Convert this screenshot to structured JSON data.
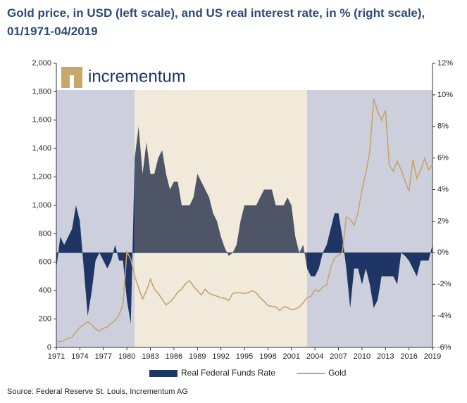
{
  "chart_data": {
    "type": "area-line",
    "title": "Gold price, in USD (left scale), and US real interest rate, in % (right scale), 01/1971-04/2019",
    "logo_text": "incrementum",
    "source": "Source: Federal Reserve St. Louis, Incrementum AG",
    "xlim": [
      1971,
      2019
    ],
    "xticks": [
      1971,
      1974,
      1977,
      1980,
      1983,
      1986,
      1989,
      1992,
      1995,
      1998,
      2001,
      2004,
      2007,
      2010,
      2013,
      2016,
      2019
    ],
    "ylim": [
      0,
      2000
    ],
    "yticks": [
      0,
      200,
      400,
      600,
      800,
      {
        "value": 1000,
        "label": "1,000"
      },
      {
        "value": 1200,
        "label": "1,200"
      },
      {
        "value": 1400,
        "label": "1,400"
      },
      {
        "value": 1600,
        "label": "1,600"
      },
      {
        "value": 1800,
        "label": "1,800"
      },
      {
        "value": 2000,
        "label": "2,000"
      }
    ],
    "y2lim": [
      -6,
      12
    ],
    "y2ticks": [
      {
        "value": -6,
        "label": "-6%"
      },
      {
        "value": -4,
        "label": "-4%"
      },
      {
        "value": -2,
        "label": "-2%"
      },
      {
        "value": 0,
        "label": "0%"
      },
      {
        "value": 2,
        "label": "2%"
      },
      {
        "value": 4,
        "label": "4%"
      },
      {
        "value": 6,
        "label": "6%"
      },
      {
        "value": 8,
        "label": "8%"
      },
      {
        "value": 10,
        "label": "10%"
      },
      {
        "value": 12,
        "label": "12%"
      }
    ],
    "bands": [
      {
        "x": [
          1971,
          1981
        ],
        "color": "#cdd0dc",
        "area_color": "#1f3566"
      },
      {
        "x": [
          1981,
          2003
        ],
        "color": "#f1eadb",
        "area_color": "#4e5566"
      },
      {
        "x": [
          2003,
          2019
        ],
        "color": "#cdd0dc",
        "area_color": "#1f3566"
      }
    ],
    "x": [
      1971,
      1971.5,
      1972,
      1972.5,
      1973,
      1973.5,
      1974,
      1974.5,
      1975,
      1975.5,
      1976,
      1976.5,
      1977,
      1977.5,
      1978,
      1978.5,
      1979,
      1979.5,
      1980,
      1980.5,
      1981,
      1981.5,
      1982,
      1982.5,
      1983,
      1983.5,
      1984,
      1984.5,
      1985,
      1985.5,
      1986,
      1986.5,
      1987,
      1987.5,
      1988,
      1988.5,
      1989,
      1989.5,
      1990,
      1990.5,
      1991,
      1991.5,
      1992,
      1992.5,
      1993,
      1993.5,
      1994,
      1994.5,
      1995,
      1995.5,
      1996,
      1996.5,
      1997,
      1997.5,
      1998,
      1998.5,
      1999,
      1999.5,
      2000,
      2000.5,
      2001,
      2001.5,
      2002,
      2002.5,
      2003,
      2003.5,
      2004,
      2004.5,
      2005,
      2005.5,
      2006,
      2006.5,
      2007,
      2007.5,
      2008,
      2008.5,
      2009,
      2009.5,
      2010,
      2010.5,
      2011,
      2011.5,
      2012,
      2012.5,
      2013,
      2013.5,
      2014,
      2014.5,
      2015,
      2015.5,
      2016,
      2016.5,
      2017,
      2017.5,
      2018,
      2018.5,
      2019
    ],
    "series": [
      {
        "name": "Real Federal Funds Rate",
        "color": "#1f3566",
        "axis": "y2",
        "values": [
          -1,
          1,
          0.5,
          1,
          1.5,
          3,
          2,
          -1,
          -4,
          -2.5,
          -0.5,
          0,
          -0.5,
          -1,
          -0.5,
          0.5,
          -0.5,
          -0.5,
          -3,
          -4.5,
          6,
          8,
          5,
          7,
          5,
          5,
          6,
          6.5,
          5,
          4,
          4.5,
          4.5,
          3,
          3,
          3,
          3.5,
          5,
          4.5,
          4,
          3.5,
          2.5,
          2,
          1,
          0.3,
          -0.2,
          0,
          0.5,
          2,
          3,
          3,
          3,
          3,
          3.5,
          4,
          4,
          4,
          3,
          3,
          3,
          3.5,
          3,
          1,
          0,
          0.5,
          -1,
          -1.5,
          -1.5,
          -1,
          0,
          0.5,
          1.5,
          2.5,
          2.5,
          1,
          -1,
          -3.5,
          -1,
          -1,
          -2,
          -1,
          -2,
          -3.5,
          -3,
          -1.5,
          -1.5,
          -1.5,
          -1.5,
          -2,
          0,
          -0.2,
          -0.5,
          -1,
          -1.5,
          -0.5,
          -0.5,
          -0.5,
          0.5
        ]
      },
      {
        "name": "Gold",
        "color": "#c4a46a",
        "axis": "y",
        "values": [
          40,
          42,
          48,
          65,
          70,
          110,
          140,
          160,
          180,
          160,
          130,
          115,
          135,
          145,
          170,
          190,
          230,
          300,
          675,
          620,
          500,
          420,
          340,
          400,
          480,
          410,
          380,
          340,
          300,
          320,
          350,
          390,
          410,
          450,
          470,
          430,
          400,
          370,
          410,
          380,
          370,
          360,
          350,
          345,
          330,
          380,
          385,
          385,
          380,
          385,
          400,
          385,
          350,
          325,
          295,
          290,
          285,
          260,
          285,
          280,
          265,
          270,
          285,
          315,
          350,
          360,
          405,
          395,
          425,
          440,
          560,
          630,
          650,
          670,
          920,
          900,
          860,
          950,
          1110,
          1230,
          1380,
          1750,
          1660,
          1600,
          1670,
          1280,
          1240,
          1310,
          1250,
          1170,
          1100,
          1320,
          1190,
          1250,
          1330,
          1250,
          1290
        ]
      }
    ]
  }
}
